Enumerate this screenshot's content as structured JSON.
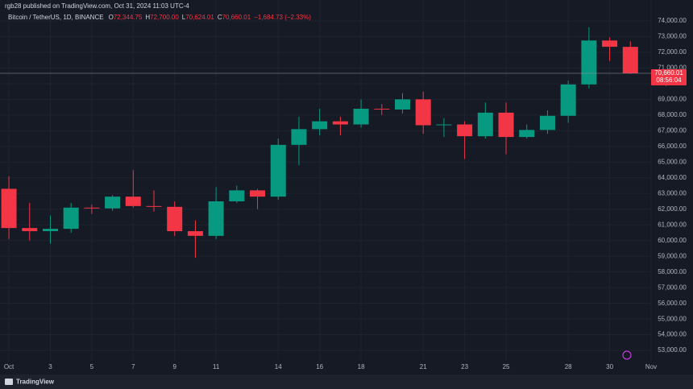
{
  "header": {
    "published": "rgb28 published on TradingView.com, Oct 31, 2024 11:03 UTC-4"
  },
  "footer": {
    "brand": "TradingView"
  },
  "chart_data": {
    "type": "candlestick",
    "title": "Bitcoin / TetherUS, 1D, BINANCE",
    "legend_items": [
      {
        "key": "O",
        "value": "72,344.75"
      },
      {
        "key": "H",
        "value": "72,700.00"
      },
      {
        "key": "L",
        "value": "70,624.01"
      },
      {
        "key": "C",
        "value": "70,660.01"
      }
    ],
    "change": "−1,684.73 (−2.33%)",
    "x": [
      1,
      2,
      3,
      4,
      5,
      6,
      7,
      8,
      9,
      10,
      11,
      12,
      13,
      14,
      15,
      16,
      17,
      18,
      19,
      20,
      21,
      22,
      23,
      24,
      25,
      26,
      27,
      28,
      29,
      30,
      31
    ],
    "open": [
      63300,
      60800,
      60600,
      60750,
      62100,
      62050,
      62800,
      62200,
      62150,
      60600,
      60300,
      62500,
      63200,
      62800,
      66100,
      67100,
      67600,
      67400,
      68400,
      68350,
      69000,
      67350,
      67400,
      66650,
      68150,
      66600,
      67050,
      67950,
      69950,
      72750,
      72344.75
    ],
    "high": [
      64100,
      62400,
      61600,
      62400,
      62300,
      62900,
      64500,
      63200,
      62500,
      61300,
      63400,
      63500,
      63300,
      66500,
      67900,
      68400,
      67900,
      69000,
      68700,
      69400,
      69500,
      67800,
      67600,
      68800,
      68800,
      67400,
      68300,
      70200,
      73600,
      72950,
      72700
    ],
    "low": [
      60100,
      60000,
      59800,
      60500,
      61700,
      61900,
      62100,
      61850,
      60300,
      58900,
      60100,
      62400,
      62000,
      62600,
      64800,
      66700,
      66700,
      67200,
      68000,
      68100,
      66800,
      66600,
      65200,
      66500,
      65500,
      66500,
      66800,
      67500,
      69700,
      71450,
      70624.01
    ],
    "close": [
      60800,
      60600,
      60750,
      62100,
      62050,
      62800,
      62200,
      62150,
      60600,
      60300,
      62500,
      63200,
      62800,
      66100,
      67100,
      67600,
      67400,
      68400,
      68350,
      69000,
      67350,
      67400,
      66650,
      68150,
      66600,
      67050,
      67950,
      69950,
      72750,
      72350,
      70660.01
    ],
    "up_color": "#089981",
    "down_color": "#f23645",
    "xlim": [
      0.57,
      32
    ],
    "xticks": [
      {
        "value": 1,
        "label": "Oct"
      },
      3,
      5,
      7,
      9,
      11,
      14,
      16,
      18,
      21,
      23,
      25,
      28,
      30,
      {
        "value": 32,
        "label": "Nov"
      }
    ],
    "ylim": [
      52390,
      75330
    ],
    "yticks": [
      {
        "value": 53000,
        "label": "53,000.00"
      },
      {
        "value": 54000,
        "label": "54,000.00"
      },
      {
        "value": 55000,
        "label": "55,000.00"
      },
      {
        "value": 56000,
        "label": "56,000.00"
      },
      {
        "value": 57000,
        "label": "57,000.00"
      },
      {
        "value": 58000,
        "label": "58,000.00"
      },
      {
        "value": 59000,
        "label": "59,000.00"
      },
      {
        "value": 60000,
        "label": "60,000.00"
      },
      {
        "value": 61000,
        "label": "61,000.00"
      },
      {
        "value": 62000,
        "label": "62,000.00"
      },
      {
        "value": 63000,
        "label": "63,000.00"
      },
      {
        "value": 64000,
        "label": "64,000.00"
      },
      {
        "value": 65000,
        "label": "65,000.00"
      },
      {
        "value": 66000,
        "label": "66,000.00"
      },
      {
        "value": 67000,
        "label": "67,000.00"
      },
      {
        "value": 68000,
        "label": "68,000.00"
      },
      {
        "value": 69000,
        "label": "69,000.00"
      },
      {
        "value": 70000,
        "label": "70,000.00"
      },
      {
        "value": 71000,
        "label": "71,000.00"
      },
      {
        "value": 72000,
        "label": "72,000.00"
      },
      {
        "value": 73000,
        "label": "73,000.00"
      },
      {
        "value": 74000,
        "label": "74,000.00"
      }
    ],
    "grid": true,
    "last_price": {
      "value": 70660.01,
      "label": "70,660.01",
      "countdown": "08:56:04"
    }
  }
}
